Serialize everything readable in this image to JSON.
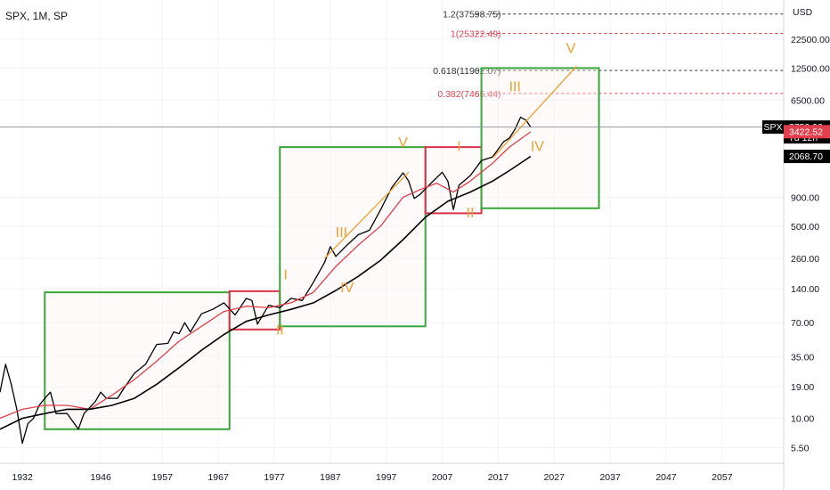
{
  "header": {
    "symbol_label": "SPX, 1M, SP"
  },
  "colors": {
    "price": "#000000",
    "ma_fast": "#e0404c",
    "ma_slow": "#000000",
    "box_green": "#3aa53a",
    "box_red": "#d8324a",
    "wave": "#f0a030",
    "fib_red": "#e04050",
    "fib_black": "#333333",
    "grid": "#f0f3fa"
  },
  "chart_data": {
    "type": "line",
    "title": "",
    "xlabel": "",
    "ylabel": "",
    "y_scale": "log",
    "y_unit": "USD",
    "ylim": [
      4,
      50000
    ],
    "xlim": [
      1928,
      2068
    ],
    "x_ticks": [
      "1932",
      "1946",
      "1957",
      "1967",
      "1977",
      "1987",
      "1997",
      "2007",
      "2017",
      "2027",
      "2037",
      "2047",
      "2057"
    ],
    "y_ticks": [
      "22500.00",
      "12500.00",
      "6500.00",
      "900.00",
      "500.00",
      "260.00",
      "140.00",
      "70.00",
      "35.00",
      "19.00",
      "10.00",
      "5.50"
    ],
    "price_labels": [
      {
        "name": "SPX",
        "value": "3759.90",
        "sub": "7d 12h",
        "color": "#000000",
        "y": 3759.9
      },
      {
        "name": "",
        "value": "3422.52",
        "sub": "",
        "color": "#e0404c",
        "y": 3422.52
      },
      {
        "name": "",
        "value": "2068.70",
        "sub": "",
        "color": "#000000",
        "y": 2068.7
      }
    ],
    "series": [
      {
        "name": "",
        "style": "price",
        "points": [
          [
            1928,
            17
          ],
          [
            1929,
            30
          ],
          [
            1930,
            20
          ],
          [
            1931,
            12
          ],
          [
            1932,
            6
          ],
          [
            1933,
            9
          ],
          [
            1934,
            10
          ],
          [
            1935,
            13
          ],
          [
            1936,
            15
          ],
          [
            1937,
            17
          ],
          [
            1938,
            11
          ],
          [
            1940,
            11
          ],
          [
            1942,
            8
          ],
          [
            1943,
            11
          ],
          [
            1945,
            14
          ],
          [
            1946,
            17
          ],
          [
            1947,
            15
          ],
          [
            1949,
            15
          ],
          [
            1950,
            18
          ],
          [
            1952,
            25
          ],
          [
            1954,
            30
          ],
          [
            1956,
            45
          ],
          [
            1958,
            46
          ],
          [
            1959,
            58
          ],
          [
            1960,
            56
          ],
          [
            1961,
            70
          ],
          [
            1962,
            58
          ],
          [
            1964,
            84
          ],
          [
            1966,
            92
          ],
          [
            1968,
            105
          ],
          [
            1970,
            82
          ],
          [
            1972,
            115
          ],
          [
            1973,
            110
          ],
          [
            1974,
            68
          ],
          [
            1976,
            100
          ],
          [
            1978,
            95
          ],
          [
            1980,
            115
          ],
          [
            1982,
            110
          ],
          [
            1984,
            160
          ],
          [
            1986,
            240
          ],
          [
            1987,
            330
          ],
          [
            1988,
            270
          ],
          [
            1990,
            340
          ],
          [
            1992,
            420
          ],
          [
            1994,
            460
          ],
          [
            1996,
            700
          ],
          [
            1998,
            1100
          ],
          [
            2000,
            1480
          ],
          [
            2001,
            1250
          ],
          [
            2002,
            880
          ],
          [
            2003,
            950
          ],
          [
            2005,
            1200
          ],
          [
            2007,
            1500
          ],
          [
            2008,
            1250
          ],
          [
            2009,
            700
          ],
          [
            2010,
            1150
          ],
          [
            2012,
            1400
          ],
          [
            2014,
            1900
          ],
          [
            2016,
            2050
          ],
          [
            2018,
            2800
          ],
          [
            2019,
            3000
          ],
          [
            2020,
            3600
          ],
          [
            2021,
            4600
          ],
          [
            2022,
            4300
          ],
          [
            2022.8,
            3760
          ]
        ]
      },
      {
        "name": "",
        "style": "ma_fast",
        "points": [
          [
            1928,
            10
          ],
          [
            1932,
            12
          ],
          [
            1936,
            13
          ],
          [
            1940,
            13
          ],
          [
            1944,
            12
          ],
          [
            1948,
            16
          ],
          [
            1952,
            22
          ],
          [
            1956,
            32
          ],
          [
            1960,
            48
          ],
          [
            1964,
            65
          ],
          [
            1968,
            88
          ],
          [
            1972,
            98
          ],
          [
            1976,
            95
          ],
          [
            1980,
            105
          ],
          [
            1984,
            130
          ],
          [
            1988,
            220
          ],
          [
            1992,
            340
          ],
          [
            1996,
            500
          ],
          [
            2000,
            900
          ],
          [
            2003,
            1050
          ],
          [
            2006,
            1200
          ],
          [
            2009,
            1000
          ],
          [
            2012,
            1250
          ],
          [
            2016,
            1800
          ],
          [
            2019,
            2500
          ],
          [
            2022.8,
            3420
          ]
        ]
      },
      {
        "name": "",
        "style": "ma_slow",
        "points": [
          [
            1928,
            8
          ],
          [
            1932,
            10
          ],
          [
            1936,
            11
          ],
          [
            1940,
            12
          ],
          [
            1944,
            12
          ],
          [
            1948,
            13
          ],
          [
            1952,
            15
          ],
          [
            1956,
            20
          ],
          [
            1960,
            28
          ],
          [
            1964,
            40
          ],
          [
            1968,
            55
          ],
          [
            1972,
            72
          ],
          [
            1976,
            82
          ],
          [
            1980,
            92
          ],
          [
            1984,
            105
          ],
          [
            1988,
            135
          ],
          [
            1992,
            180
          ],
          [
            1996,
            250
          ],
          [
            2000,
            380
          ],
          [
            2004,
            600
          ],
          [
            2008,
            830
          ],
          [
            2012,
            1000
          ],
          [
            2016,
            1250
          ],
          [
            2019,
            1550
          ],
          [
            2022.8,
            2070
          ]
        ]
      }
    ],
    "fib_levels": [
      {
        "label": "1.2(37598.75)",
        "value": 37598.75,
        "color": "#333333"
      },
      {
        "label": "1(25322.49)",
        "value": 25322.49,
        "color": "#e04050"
      },
      {
        "label": "0.618(11902.07)",
        "value": 11902.07,
        "color": "#333333"
      },
      {
        "label": "0.382(7465.44)",
        "value": 7465.44,
        "color": "#e04050"
      }
    ],
    "boxes": [
      {
        "color": "green",
        "x1": 1936,
        "x2": 1969,
        "y1": 8,
        "y2": 130
      },
      {
        "color": "red",
        "x1": 1969,
        "x2": 1978,
        "y1": 61,
        "y2": 133
      },
      {
        "color": "green",
        "x1": 1978,
        "x2": 2004,
        "y1": 65,
        "y2": 2500
      },
      {
        "color": "red",
        "x1": 2004,
        "x2": 2014,
        "y1": 650,
        "y2": 2500
      },
      {
        "color": "green",
        "x1": 2014,
        "x2": 2035,
        "y1": 720,
        "y2": 12500
      }
    ],
    "wave_lines": [
      {
        "points": [
          [
            1986,
            260
          ],
          [
            2001,
            1500
          ]
        ]
      },
      {
        "points": [
          [
            2016,
            2000
          ],
          [
            2031,
            13000
          ]
        ]
      }
    ],
    "wave_labels": [
      {
        "text": "I",
        "x": 1979,
        "y": 170
      },
      {
        "text": "II",
        "x": 1978,
        "y": 55
      },
      {
        "text": "III",
        "x": 1989,
        "y": 400
      },
      {
        "text": "IV",
        "x": 1990,
        "y": 130
      },
      {
        "text": "V",
        "x": 2000,
        "y": 2500
      },
      {
        "text": "I",
        "x": 2010,
        "y": 2300
      },
      {
        "text": "II",
        "x": 2012,
        "y": 600
      },
      {
        "text": "III",
        "x": 2020,
        "y": 7800
      },
      {
        "text": "IV",
        "x": 2024,
        "y": 2300
      },
      {
        "text": "V",
        "x": 2030,
        "y": 17000
      }
    ]
  }
}
